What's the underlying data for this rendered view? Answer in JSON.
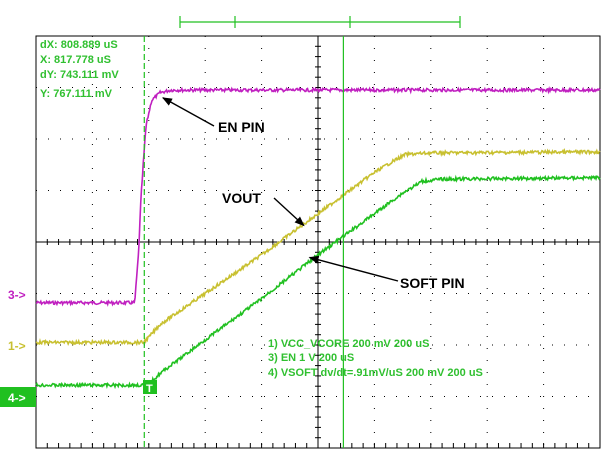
{
  "cursor_readouts": {
    "dx": "dX: 808.889 uS",
    "x": "X: 817.778 uS",
    "dy": "dY: 743.111 mV",
    "y": "Y: 767.111 mV"
  },
  "channel_markers": {
    "ch3": "3->",
    "ch1": "1->",
    "ch4": "4->"
  },
  "trigger_marker": "T",
  "settings": {
    "line1": "1) VCC_VCORE  200 mV  200 uS",
    "line2": "3) EN  1 V   200 uS",
    "line3": "4) VSOFT dv/dt=.91mV/uS 200 mV   200 uS"
  },
  "annotations": {
    "en_pin": "EN PIN",
    "vout": "VOUT",
    "soft_pin": "SOFT PIN"
  },
  "colors": {
    "ch1": "#c8c030",
    "ch3": "#c020c0",
    "ch4": "#20c020",
    "grid": "#000000",
    "cursor": "#20c020",
    "text": "#30c030"
  },
  "chart_data": {
    "type": "line",
    "title": "",
    "xlabel": "",
    "ylabel": "",
    "grid": true,
    "x_unit": "divisions",
    "y_unit": "divisions (from top of screen)",
    "xlim": [
      0,
      10
    ],
    "ylim": [
      0,
      8
    ],
    "series": [
      {
        "name": "3) EN",
        "channel": "ch3",
        "x": [
          0,
          1.75,
          1.82,
          1.86,
          1.9,
          1.95,
          2.05,
          2.2,
          2.4,
          10
        ],
        "y": [
          5.18,
          5.18,
          4.2,
          3.2,
          2.5,
          1.75,
          1.25,
          1.1,
          1.05,
          1.05
        ]
      },
      {
        "name": "1) VCC_VCORE",
        "channel": "ch1",
        "x": [
          0,
          1.9,
          2.0,
          2.2,
          3.0,
          4.0,
          5.0,
          6.0,
          6.3,
          6.55,
          7.0,
          10
        ],
        "y": [
          5.95,
          5.95,
          5.85,
          5.6,
          5.0,
          4.25,
          3.45,
          2.65,
          2.45,
          2.3,
          2.27,
          2.25
        ]
      },
      {
        "name": "4) VSOFT",
        "channel": "ch4",
        "x": [
          0,
          1.95,
          2.0,
          2.2,
          3.0,
          4.0,
          5.0,
          6.0,
          6.5,
          6.85,
          7.2,
          10
        ],
        "y": [
          6.78,
          6.78,
          6.76,
          6.55,
          5.9,
          5.1,
          4.25,
          3.45,
          3.05,
          2.82,
          2.78,
          2.75
        ]
      }
    ],
    "cursors": {
      "vertical_x": [
        1.92,
        5.45
      ]
    },
    "annotations": [
      {
        "label": "EN PIN",
        "points_to": {
          "x": 2.25,
          "y": 1.2
        }
      },
      {
        "label": "VOUT",
        "points_to": {
          "x": 4.75,
          "y": 3.68
        }
      },
      {
        "label": "SOFT PIN",
        "points_to": {
          "x": 4.85,
          "y": 4.3
        }
      }
    ]
  }
}
